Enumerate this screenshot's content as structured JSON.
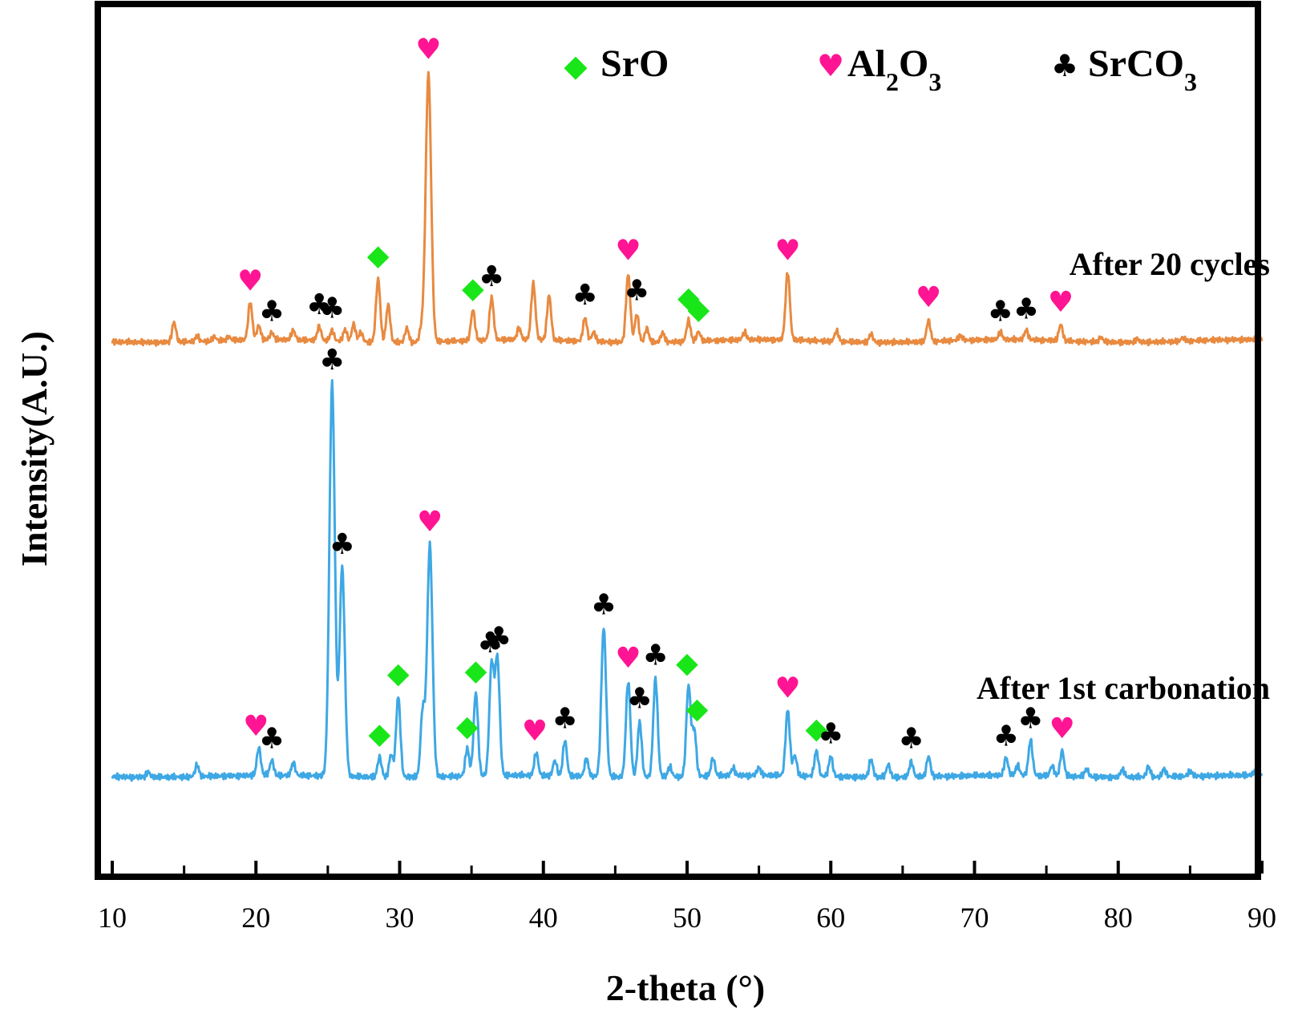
{
  "chart_data": {
    "type": "line",
    "xlabel": "2-theta (°)",
    "ylabel": "Intensity(A.U.)",
    "xlim": [
      10,
      90
    ],
    "x_ticks": [
      10,
      20,
      30,
      40,
      50,
      60,
      70,
      80,
      90
    ],
    "grid": false,
    "y_ticks_shown": false,
    "legend": {
      "placement": "top-right",
      "entries": [
        {
          "symbol": "diamond",
          "color": "#19e619",
          "label": "SrO",
          "label_main": "SrO",
          "sub1": "",
          "mid": "",
          "sub2": ""
        },
        {
          "symbol": "heart",
          "color": "#ff1493",
          "label": "Al2O3",
          "label_main": "Al",
          "sub1": "2",
          "mid": "O",
          "sub2": "3"
        },
        {
          "symbol": "club",
          "color": "#000000",
          "label": "SrCO3",
          "label_main": "SrCO",
          "sub1": "3",
          "mid": "",
          "sub2": ""
        }
      ]
    },
    "series": [
      {
        "name": "After 20 cycles",
        "color": "#e88a40",
        "baseline": 0.5,
        "peaks": [
          [
            14.3,
            0.85
          ],
          [
            15.9,
            0.22
          ],
          [
            17.1,
            0.18
          ],
          [
            18.1,
            0.15
          ],
          [
            19.6,
            1.6
          ],
          [
            20.2,
            0.6
          ],
          [
            21.1,
            0.3
          ],
          [
            22.6,
            0.4
          ],
          [
            24.4,
            0.6
          ],
          [
            25.3,
            0.45
          ],
          [
            26.2,
            0.5
          ],
          [
            26.8,
            0.75
          ],
          [
            27.3,
            0.4
          ],
          [
            28.5,
            2.7
          ],
          [
            29.2,
            1.6
          ],
          [
            30.5,
            0.6
          ],
          [
            31.5,
            0.5
          ],
          [
            32.0,
            11.5
          ],
          [
            35.1,
            1.3
          ],
          [
            36.4,
            1.8
          ],
          [
            38.3,
            0.5
          ],
          [
            39.3,
            2.4
          ],
          [
            40.4,
            1.9
          ],
          [
            42.9,
            1.0
          ],
          [
            43.5,
            0.4
          ],
          [
            45.9,
            2.9
          ],
          [
            46.5,
            1.2
          ],
          [
            47.2,
            0.6
          ],
          [
            48.3,
            0.4
          ],
          [
            50.1,
            0.9
          ],
          [
            50.8,
            0.4
          ],
          [
            54.0,
            0.3
          ],
          [
            57.0,
            2.9
          ],
          [
            60.4,
            0.45
          ],
          [
            62.8,
            0.35
          ],
          [
            66.8,
            0.9
          ],
          [
            69.0,
            0.2
          ],
          [
            71.8,
            0.3
          ],
          [
            73.6,
            0.4
          ],
          [
            76.0,
            0.7
          ],
          [
            78.8,
            0.2
          ],
          [
            81.3,
            0.15
          ],
          [
            84.5,
            0.15
          ]
        ]
      },
      {
        "name": "After 1st carbonation",
        "color": "#3ea8e4",
        "baseline": 0.3,
        "peaks": [
          [
            12.5,
            0.2
          ],
          [
            15.9,
            0.45
          ],
          [
            20.2,
            1.1
          ],
          [
            21.1,
            0.6
          ],
          [
            22.6,
            0.5
          ],
          [
            25.3,
            15.6
          ],
          [
            26.0,
            8.3
          ],
          [
            28.6,
            0.8
          ],
          [
            29.4,
            0.9
          ],
          [
            29.9,
            3.2
          ],
          [
            31.6,
            2.6
          ],
          [
            32.1,
            9.2
          ],
          [
            34.7,
            1.1
          ],
          [
            35.3,
            3.3
          ],
          [
            36.4,
            4.4
          ],
          [
            36.8,
            4.6
          ],
          [
            39.5,
            0.9
          ],
          [
            40.8,
            0.6
          ],
          [
            41.5,
            1.4
          ],
          [
            43.0,
            0.7
          ],
          [
            44.2,
            5.9
          ],
          [
            45.9,
            3.8
          ],
          [
            46.7,
            2.2
          ],
          [
            47.8,
            3.9
          ],
          [
            48.8,
            0.4
          ],
          [
            50.1,
            3.6
          ],
          [
            50.5,
            1.8
          ],
          [
            51.8,
            0.7
          ],
          [
            53.2,
            0.3
          ],
          [
            55.0,
            0.3
          ],
          [
            57.0,
            2.6
          ],
          [
            57.5,
            0.8
          ],
          [
            59.0,
            1.0
          ],
          [
            60.0,
            0.8
          ],
          [
            62.8,
            0.7
          ],
          [
            64.0,
            0.5
          ],
          [
            65.6,
            0.6
          ],
          [
            66.8,
            0.8
          ],
          [
            72.2,
            0.7
          ],
          [
            73.0,
            0.4
          ],
          [
            73.9,
            1.4
          ],
          [
            75.4,
            0.4
          ],
          [
            76.1,
            1.0
          ],
          [
            77.8,
            0.3
          ],
          [
            80.3,
            0.3
          ],
          [
            82.1,
            0.4
          ],
          [
            83.2,
            0.3
          ],
          [
            85.0,
            0.2
          ],
          [
            89.5,
            0.15
          ]
        ]
      }
    ],
    "annotations": [
      {
        "series": 0,
        "symbol": "heart",
        "x": [
          19.6,
          32.0,
          45.9,
          57.0,
          66.8,
          76.0
        ]
      },
      {
        "series": 0,
        "symbol": "diamond",
        "x": [
          28.5,
          35.1,
          50.1,
          50.8
        ]
      },
      {
        "series": 0,
        "symbol": "club",
        "x": [
          21.1,
          24.4,
          25.3,
          36.4,
          42.9,
          46.5,
          71.8,
          73.6
        ]
      },
      {
        "series": 1,
        "symbol": "heart",
        "x": [
          20.0,
          32.1,
          39.4,
          45.9,
          57.0,
          76.1
        ]
      },
      {
        "series": 1,
        "symbol": "diamond",
        "x": [
          28.6,
          29.9,
          34.7,
          35.3,
          50.0,
          50.7,
          59.0
        ]
      },
      {
        "series": 1,
        "symbol": "club",
        "x": [
          21.1,
          25.3,
          26.0,
          36.3,
          36.9,
          41.5,
          44.2,
          46.7,
          47.8,
          60.0,
          65.6,
          72.2,
          73.9
        ]
      }
    ]
  }
}
